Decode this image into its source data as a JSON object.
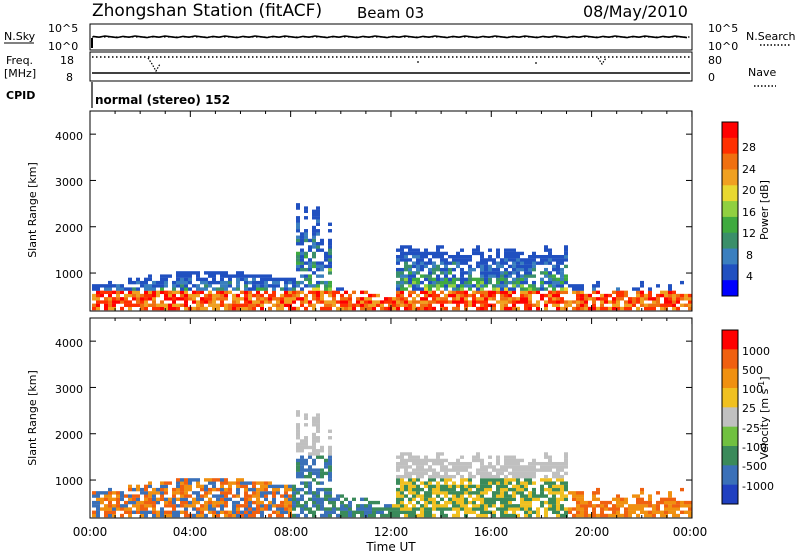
{
  "header": {
    "station": "Zhongshan Station (fitACF)",
    "beam": "Beam 03",
    "date": "08/May/2010"
  },
  "top_panels": {
    "nsky_label": "N.Sky",
    "nsky_ticks": [
      "10^5",
      "10^0"
    ],
    "nsearch_label": "N.Search",
    "nsearch_ticks": [
      "10^5",
      "10^0"
    ],
    "freq_label": "Freq.",
    "freq_unit": "[MHz]",
    "freq_ticks": [
      "18",
      "8"
    ],
    "nave_label": "Nave",
    "nave_ticks": [
      "80",
      "0"
    ],
    "cpid_label": "CPID",
    "cpid_text": "normal (stereo) 152"
  },
  "chart_data": [
    {
      "type": "heatmap",
      "name": "power",
      "ylabel": "Slant Range [km]",
      "ylim": [
        180,
        4500
      ],
      "yticks": [
        "4000",
        "3000",
        "2000",
        "1000"
      ],
      "xlim": [
        "00:00",
        "24:00"
      ],
      "colorbar": {
        "label": "Power [dB]",
        "ticks": [
          "28",
          "24",
          "20",
          "16",
          "12",
          "8",
          "4"
        ],
        "colors": [
          "#0000ff",
          "#2050c0",
          "#3a7fbf",
          "#3a8f6a",
          "#3faa3f",
          "#90d040",
          "#e8d830",
          "#f0a020",
          "#f07010",
          "#ff3000",
          "#ff0000"
        ]
      }
    },
    {
      "type": "heatmap",
      "name": "velocity",
      "ylabel": "Slant Range [km]",
      "ylim": [
        180,
        4500
      ],
      "yticks": [
        "4000",
        "3000",
        "2000",
        "1000"
      ],
      "xlim": [
        "00:00",
        "24:00"
      ],
      "xlabel": "Time UT",
      "xticks": [
        "00:00",
        "04:00",
        "08:00",
        "12:00",
        "16:00",
        "20:00",
        "00:00"
      ],
      "colorbar": {
        "label": "Velocity [m s",
        "label_sup": "-1",
        "label_end": "]",
        "ticks": [
          "1000",
          "500",
          "100",
          "25",
          "-25",
          "-100",
          "-500",
          "-1000"
        ],
        "colors": [
          "#2040c0",
          "#3a70b8",
          "#3a8a5a",
          "#70c040",
          "#c0c0c0",
          "#f0c020",
          "#f09010",
          "#f06010",
          "#ff0000"
        ]
      }
    }
  ]
}
